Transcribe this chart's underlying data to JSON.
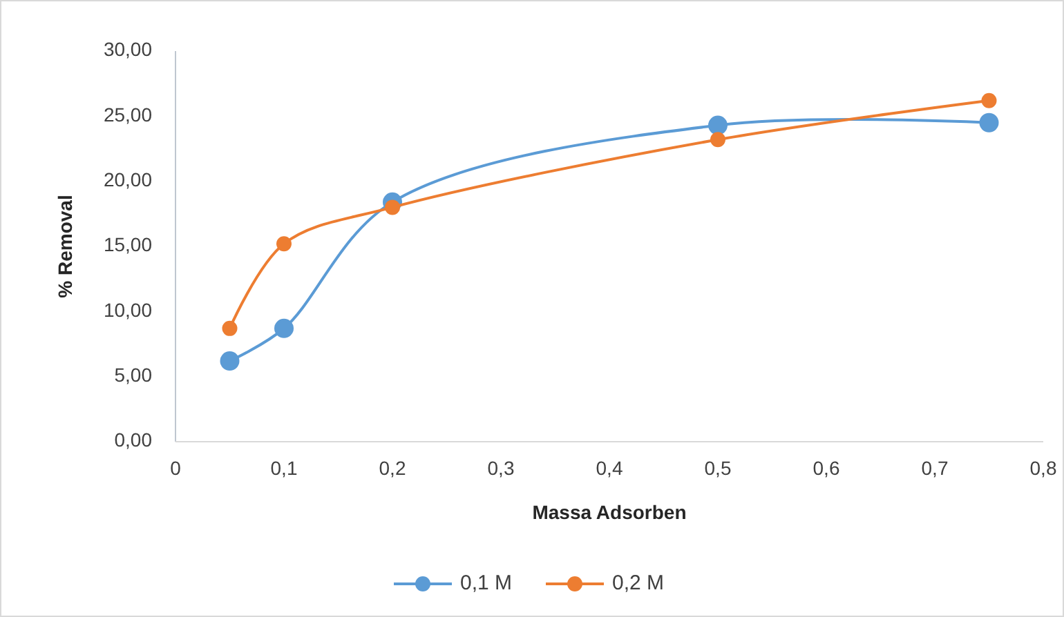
{
  "chart_data": {
    "type": "line",
    "xlabel": "Massa Adsorben",
    "ylabel": "% Removal",
    "xlim": [
      0,
      0.8
    ],
    "xticks": [
      0,
      {
        "value": 0.1,
        "label": "0,1"
      },
      {
        "value": 0.2,
        "label": "0,2"
      },
      {
        "value": 0.3,
        "label": "0,3"
      },
      {
        "value": 0.4,
        "label": "0,4"
      },
      {
        "value": 0.5,
        "label": "0,5"
      },
      {
        "value": 0.6,
        "label": "0,6"
      },
      {
        "value": 0.7,
        "label": "0,7"
      },
      {
        "value": 0.8,
        "label": "0,8"
      }
    ],
    "ylim": [
      0,
      30
    ],
    "yticks": [
      {
        "value": 0,
        "label": "0,00"
      },
      {
        "value": 5,
        "label": "5,00"
      },
      {
        "value": 10,
        "label": "10,00"
      },
      {
        "value": 15,
        "label": "15,00"
      },
      {
        "value": 20,
        "label": "20,00"
      },
      {
        "value": 25,
        "label": "25,00"
      },
      {
        "value": 30,
        "label": "30,00"
      }
    ],
    "x": [
      0.05,
      0.1,
      0.2,
      0.5,
      0.75
    ],
    "series": [
      {
        "name": "0,1 M",
        "color": "#5b9bd5",
        "values": [
          6.2,
          8.7,
          18.4,
          24.3,
          24.5
        ]
      },
      {
        "name": "0,2 M",
        "color": "#ed7d31",
        "values": [
          8.7,
          15.2,
          18.0,
          23.2,
          26.2
        ]
      }
    ],
    "marker": "circle",
    "grid": false,
    "legend": "bottom"
  }
}
